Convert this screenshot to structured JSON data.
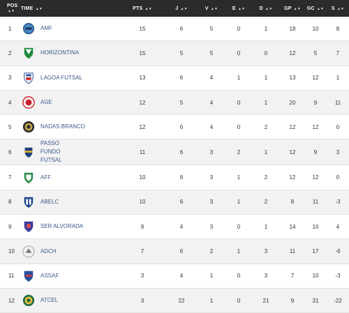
{
  "headers": {
    "pos": "POS",
    "time": "TIME",
    "pts": "PTS",
    "j": "J",
    "v": "V",
    "e": "E",
    "d": "D",
    "gp": "GP",
    "gc": "GC",
    "s": "S",
    "sort_glyph": "▲▼"
  },
  "rows": [
    {
      "pos": "1",
      "team": "AMF",
      "pts": "15",
      "j": "6",
      "v": "5",
      "e": "0",
      "d": "1",
      "gp": "18",
      "gc": "10",
      "s": "8",
      "logo": "amf-logo"
    },
    {
      "pos": "2",
      "team": "HORIZONTINA",
      "pts": "15",
      "j": "5",
      "v": "5",
      "e": "0",
      "d": "0",
      "gp": "12",
      "gc": "5",
      "s": "7",
      "logo": "horizontina-logo"
    },
    {
      "pos": "3",
      "team": "LAGOA FUTSAL",
      "pts": "13",
      "j": "6",
      "v": "4",
      "e": "1",
      "d": "1",
      "gp": "13",
      "gc": "12",
      "s": "1",
      "logo": "lagoa-futsal-logo"
    },
    {
      "pos": "4",
      "team": "AGE",
      "pts": "12",
      "j": "5",
      "v": "4",
      "e": "0",
      "d": "1",
      "gp": "20",
      "gc": "9",
      "s": "11",
      "logo": "age-logo"
    },
    {
      "pos": "5",
      "team": "NADAS BRANCO",
      "pts": "12",
      "j": "6",
      "v": "4",
      "e": "0",
      "d": "2",
      "gp": "12",
      "gc": "12",
      "s": "0",
      "logo": "nadas-branco-logo"
    },
    {
      "pos": "6",
      "team": "PASSO FUNDO FUTSAL",
      "pts": "11",
      "j": "6",
      "v": "3",
      "e": "2",
      "d": "1",
      "gp": "12",
      "gc": "9",
      "s": "3",
      "logo": "passo-fundo-futsal-logo"
    },
    {
      "pos": "7",
      "team": "AFF",
      "pts": "10",
      "j": "6",
      "v": "3",
      "e": "1",
      "d": "2",
      "gp": "12",
      "gc": "12",
      "s": "0",
      "logo": "aff-logo"
    },
    {
      "pos": "8",
      "team": "ABELC",
      "pts": "10",
      "j": "6",
      "v": "3",
      "e": "1",
      "d": "2",
      "gp": "8",
      "gc": "11",
      "s": "-3",
      "logo": "abelc-logo"
    },
    {
      "pos": "9",
      "team": "SER ALVORADA",
      "pts": "9",
      "j": "4",
      "v": "3",
      "e": "0",
      "d": "1",
      "gp": "14",
      "gc": "10",
      "s": "4",
      "logo": "ser-alvorada-logo"
    },
    {
      "pos": "10",
      "team": "ADCH",
      "pts": "7",
      "j": "6",
      "v": "2",
      "e": "1",
      "d": "3",
      "gp": "11",
      "gc": "17",
      "s": "-6",
      "logo": "adch-logo"
    },
    {
      "pos": "11",
      "team": "ASSAF",
      "pts": "3",
      "j": "4",
      "v": "1",
      "e": "0",
      "d": "3",
      "gp": "7",
      "gc": "10",
      "s": "-3",
      "logo": "assaf-logo"
    },
    {
      "pos": "12",
      "team": "ATCEL",
      "pts": "3",
      "j": "22",
      "v": "1",
      "e": "0",
      "d": "21",
      "gp": "9",
      "gc": "31",
      "s": "-22",
      "logo": "atcel-logo"
    }
  ]
}
